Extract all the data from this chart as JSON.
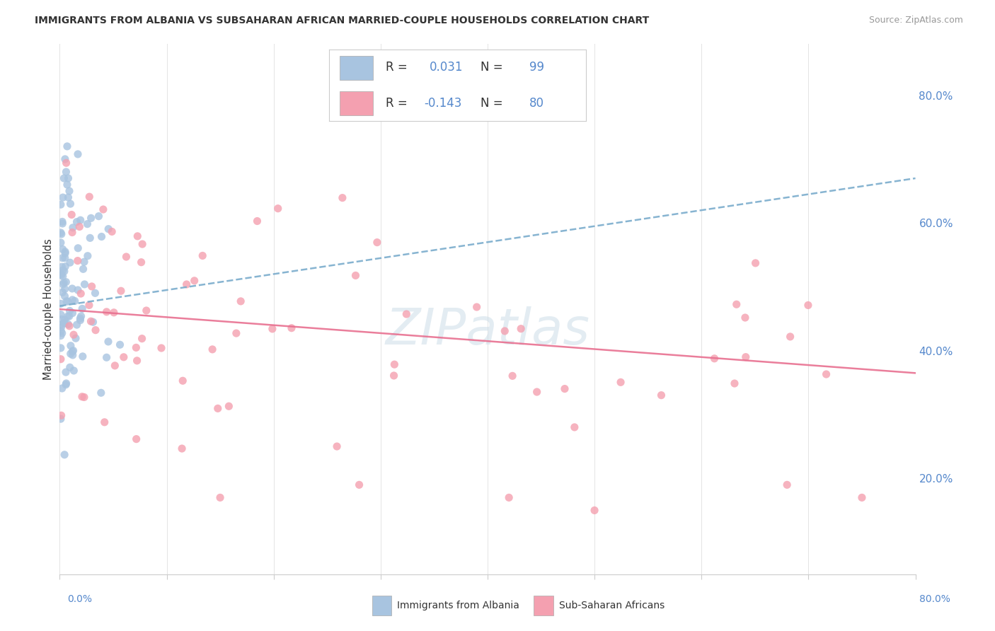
{
  "title": "IMMIGRANTS FROM ALBANIA VS SUBSAHARAN AFRICAN MARRIED-COUPLE HOUSEHOLDS CORRELATION CHART",
  "source": "Source: ZipAtlas.com",
  "ylabel": "Married-couple Households",
  "xlim": [
    0.0,
    0.8
  ],
  "ylim": [
    0.05,
    0.88
  ],
  "albania_color": "#a8c4e0",
  "subsaharan_color": "#f4a0b0",
  "albania_line_color": "#7aaccc",
  "subsaharan_line_color": "#e87090",
  "albania_trend": [
    0.47,
    0.67
  ],
  "subsaharan_trend": [
    0.465,
    0.365
  ],
  "legend_r1_val": "0.031",
  "legend_r1_n": "99",
  "legend_r2_val": "-0.143",
  "legend_r2_n": "80",
  "watermark": "ZIPatlas",
  "text_color": "#333333",
  "blue_color": "#5588cc",
  "source_color": "#999999"
}
